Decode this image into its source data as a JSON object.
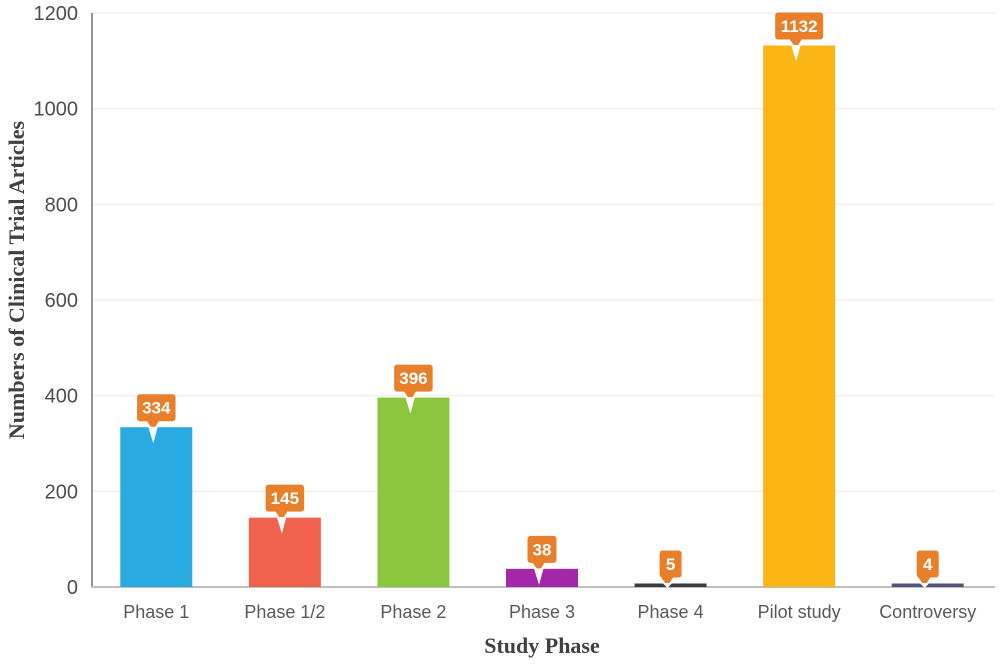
{
  "chart_data": {
    "type": "bar",
    "title": "",
    "xlabel": "Study Phase",
    "ylabel": "Numbers of Clinical Trial Articles",
    "categories": [
      "Phase 1",
      "Phase 1/2",
      "Phase 2",
      "Phase 3",
      "Phase 4",
      "Pilot study",
      "Controversy"
    ],
    "values": [
      334,
      145,
      396,
      38,
      5,
      1132,
      4
    ],
    "bar_colors": [
      "#29ABE2",
      "#F0624E",
      "#8CC63F",
      "#A427A9",
      "#3B3B3B",
      "#FBB616",
      "#54547A"
    ],
    "ylim": [
      0,
      1200
    ],
    "yticks": [
      0,
      200,
      400,
      600,
      800,
      1000,
      1200
    ],
    "grid": "horizontal",
    "legend": "none",
    "data_label_style": "orange-callout-above-bar",
    "style": {
      "background": "#FFFFFF",
      "callout_fill": "#E8802B",
      "callout_text_color": "#FFFFFF",
      "gridline_color": "#F0F0F0",
      "baseline_color": "#BFBFBF",
      "yaxis_color": "#707070",
      "tick_color": "#4D4D4D",
      "category_color": "#595959",
      "axis_title_color": "#404040"
    }
  }
}
